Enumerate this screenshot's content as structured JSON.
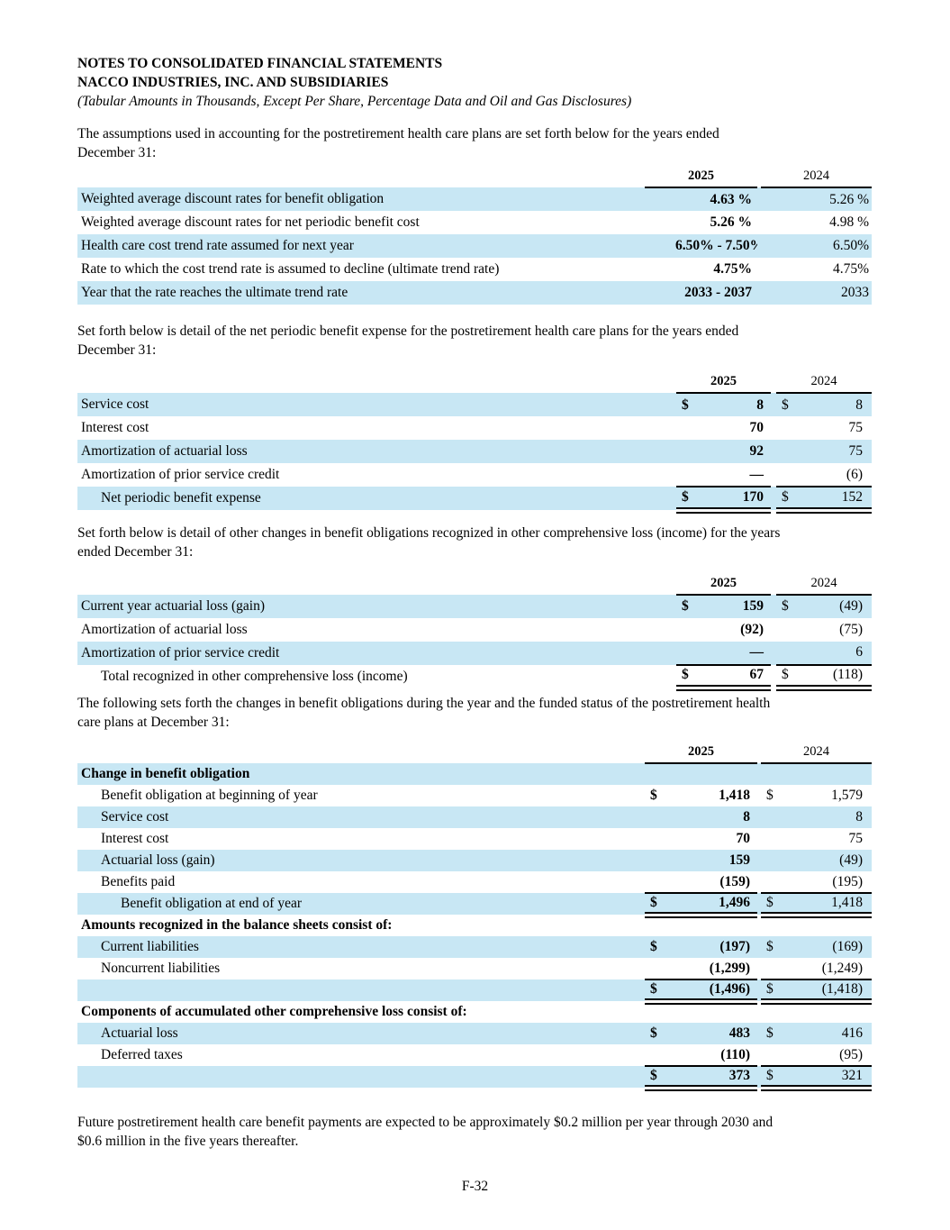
{
  "header": {
    "line1": "NOTES TO CONSOLIDATED FINANCIAL STATEMENTS",
    "line2": "NACCO INDUSTRIES, INC. AND SUBSIDIARIES",
    "line3": "(Tabular Amounts in Thousands, Except Per Share, Percentage Data and Oil and Gas Disclosures)"
  },
  "paragraphs": {
    "p1": "The assumptions used in accounting for the postretirement health care plans are set forth below for the years ended\nDecember 31:",
    "p2": "Set forth below is detail of the net periodic benefit expense for the postretirement health care plans for the years ended\nDecember 31:",
    "p3": "Set forth below is detail of other changes in benefit obligations recognized in other comprehensive loss (income) for the years\nended December 31:",
    "p4": "The following sets forth the changes in benefit obligations during the year and the funded status of the postretirement health\ncare plans at December 31:",
    "p5": "Future postretirement health care benefit payments are expected to be approximately $0.2 million per year through 2030 and\n$0.6 million in the five years thereafter."
  },
  "colors": {
    "row_shade": "#c8e7f4",
    "rule_color": "#000000"
  },
  "tables": {
    "assumptions": {
      "profile": "A",
      "years": [
        "2025",
        "2024"
      ],
      "rows": [
        {
          "label": "Weighted average discount rates for benefit obligation",
          "v1": "4.63 %",
          "v2": "5.26 %",
          "shaded": true
        },
        {
          "label": "Weighted average discount rates for net periodic benefit cost",
          "v1": "5.26 %",
          "v2": "4.98 %",
          "shaded": false
        },
        {
          "label": "Health care cost trend rate assumed for next year",
          "v1": "6.50% - 7.50%",
          "v2": "6.50%",
          "shaded": true
        },
        {
          "label": "Rate to which the cost trend rate is assumed to decline (ultimate trend rate)",
          "v1": "4.75%",
          "v2": "4.75%",
          "shaded": false
        },
        {
          "label": "Year that the rate reaches the ultimate trend rate",
          "v1": "2033 - 2037",
          "v2": "2033",
          "shaded": true
        }
      ]
    },
    "net_periodic_benefit_expense": {
      "profile": "B",
      "years": [
        "2025",
        "2024"
      ],
      "rows": [
        {
          "label": "Service cost",
          "d1": "$",
          "v1": "8",
          "d2": "$",
          "v2": "8",
          "shaded": true
        },
        {
          "label": "Interest cost",
          "v1": "70",
          "v2": "75",
          "shaded": false
        },
        {
          "label": "Amortization of actuarial loss",
          "v1": "92",
          "v2": "75",
          "shaded": true
        },
        {
          "label": "Amortization of prior service credit",
          "v1": "—",
          "v2": "(6)",
          "shaded": false,
          "rule": "single"
        },
        {
          "label": "Net periodic benefit expense",
          "indent": 1,
          "d1": "$",
          "v1": "170",
          "d2": "$",
          "v2": "152",
          "shaded": true,
          "rule": "double"
        }
      ]
    },
    "oci_changes": {
      "profile": "B",
      "years": [
        "2025",
        "2024"
      ],
      "rows": [
        {
          "label": "Current year actuarial loss (gain)",
          "d1": "$",
          "v1": "159",
          "d2": "$",
          "v2": "(49)",
          "shaded": true
        },
        {
          "label": "Amortization of actuarial loss",
          "v1": "(92)",
          "v2": "(75)",
          "shaded": false
        },
        {
          "label": "Amortization of prior service credit",
          "v1": "—",
          "v2": "6",
          "shaded": true,
          "rule": "single"
        },
        {
          "label": "Total recognized in other comprehensive loss (income)",
          "indent": 1,
          "d1": "$",
          "v1": "67",
          "d2": "$",
          "v2": "(118)",
          "shaded": false,
          "rule": "double"
        }
      ]
    },
    "benefit_obligation": {
      "profile": "A",
      "years": [
        "2025",
        "2024"
      ],
      "rows": [
        {
          "label": "Change in benefit obligation",
          "bold": true,
          "shaded": true
        },
        {
          "label": "Benefit obligation at beginning of year",
          "indent": 1,
          "d1": "$",
          "v1": "1,418",
          "d2": "$",
          "v2": "1,579",
          "shaded": false
        },
        {
          "label": "Service cost",
          "indent": 1,
          "v1": "8",
          "v2": "8",
          "shaded": true
        },
        {
          "label": "Interest cost",
          "indent": 1,
          "v1": "70",
          "v2": "75",
          "shaded": false
        },
        {
          "label": "Actuarial loss (gain)",
          "indent": 1,
          "v1": "159",
          "v2": "(49)",
          "shaded": true
        },
        {
          "label": "Benefits paid",
          "indent": 1,
          "v1": "(159)",
          "v2": "(195)",
          "shaded": false,
          "rule": "single"
        },
        {
          "label": "Benefit obligation at end of year",
          "indent": 2,
          "d1": "$",
          "v1": "1,496",
          "d2": "$",
          "v2": "1,418",
          "shaded": true,
          "rule": "double"
        },
        {
          "label": "Amounts recognized in the balance sheets consist of:",
          "bold": true,
          "shaded": false
        },
        {
          "label": "Current liabilities",
          "indent": 1,
          "d1": "$",
          "v1": "(197)",
          "d2": "$",
          "v2": "(169)",
          "shaded": true
        },
        {
          "label": "Noncurrent liabilities",
          "indent": 1,
          "v1": "(1,299)",
          "v2": "(1,249)",
          "shaded": false,
          "rule": "single"
        },
        {
          "label": "",
          "d1": "$",
          "v1": "(1,496)",
          "d2": "$",
          "v2": "(1,418)",
          "shaded": true,
          "rule": "double"
        },
        {
          "label": "Components of accumulated other comprehensive loss consist of:",
          "bold": true,
          "shaded": false
        },
        {
          "label": "Actuarial loss",
          "indent": 1,
          "d1": "$",
          "v1": "483",
          "d2": "$",
          "v2": "416",
          "shaded": true
        },
        {
          "label": "Deferred taxes",
          "indent": 1,
          "v1": "(110)",
          "v2": "(95)",
          "shaded": false,
          "rule": "single"
        },
        {
          "label": "",
          "d1": "$",
          "v1": "373",
          "d2": "$",
          "v2": "321",
          "shaded": true,
          "rule": "double"
        }
      ]
    }
  },
  "footer": {
    "page_number": "F-32"
  }
}
